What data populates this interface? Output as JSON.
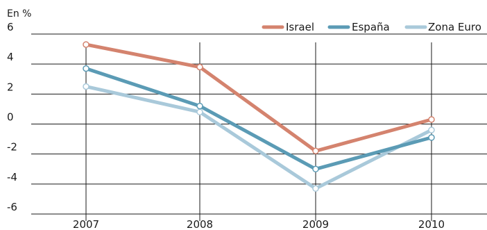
{
  "chart_data": {
    "type": "line",
    "unit_label": "En %",
    "x": [
      "2007",
      "2008",
      "2009",
      "2010"
    ],
    "ylim": [
      -6,
      6
    ],
    "yticks": [
      6,
      4,
      2,
      0,
      -2,
      -4,
      -6
    ],
    "ytick_labels": [
      "6",
      "4",
      "2",
      "0",
      "-2",
      "-4",
      "-6"
    ],
    "grid": true,
    "legend": "top-right",
    "series": [
      {
        "name": "Israel",
        "color": "#d4836e",
        "values": [
          5.3,
          3.8,
          -1.8,
          0.3
        ]
      },
      {
        "name": "España",
        "color": "#5b9bb5",
        "values": [
          3.7,
          1.2,
          -3.0,
          -0.9
        ]
      },
      {
        "name": "Zona Euro",
        "color": "#a9c9da",
        "values": [
          2.5,
          0.8,
          -4.3,
          -0.4
        ]
      }
    ]
  }
}
